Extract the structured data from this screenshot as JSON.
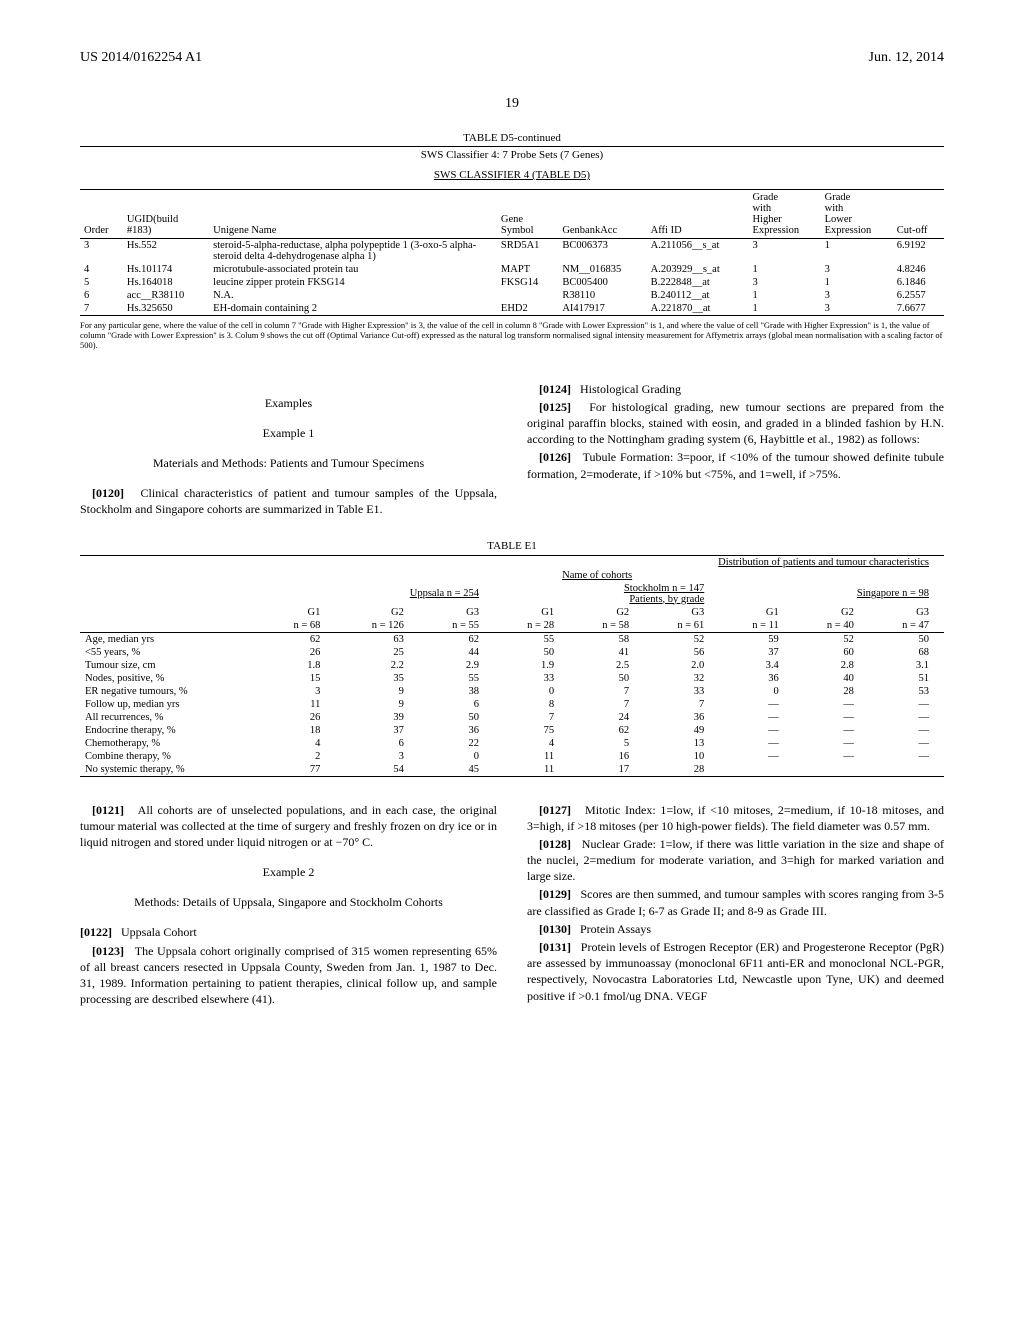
{
  "header": {
    "left": "US 2014/0162254 A1",
    "right": "Jun. 12, 2014",
    "page_num": "19"
  },
  "tableD5": {
    "title_line": "TABLE D5-continued",
    "subtitle1": "SWS Classifier 4: 7 Probe Sets (7 Genes)",
    "subtitle2": "SWS CLASSIFIER 4 (TABLE D5)",
    "columns": [
      "Order",
      "UGID(build #183)",
      "Unigene Name",
      "Gene Symbol",
      "GenbankAcc",
      "Affi ID",
      "Grade with Higher Expression",
      "Grade with Lower Expression",
      "Cut-off"
    ],
    "rows": [
      {
        "order": "3",
        "ugid": "Hs.552",
        "name": "steroid-5-alpha-reductase, alpha polypeptide 1 (3-oxo-5 alpha-steroid delta 4-dehydrogenase alpha 1)",
        "sym": "SRD5A1",
        "gb": "BC006373",
        "affi": "A.211056__s_at",
        "hi": "3",
        "lo": "1",
        "cut": "6.9192"
      },
      {
        "order": "4",
        "ugid": "Hs.101174",
        "name": "microtubule-associated protein tau",
        "sym": "MAPT",
        "gb": "NM__016835",
        "affi": "A.203929__s_at",
        "hi": "1",
        "lo": "3",
        "cut": "4.8246"
      },
      {
        "order": "5",
        "ugid": "Hs.164018",
        "name": "leucine zipper protein FKSG14",
        "sym": "FKSG14",
        "gb": "BC005400",
        "affi": "B.222848__at",
        "hi": "3",
        "lo": "1",
        "cut": "6.1846"
      },
      {
        "order": "6",
        "ugid": "acc__R38110",
        "name": "N.A.",
        "sym": "",
        "gb": "R38110",
        "affi": "B.240112__at",
        "hi": "1",
        "lo": "3",
        "cut": "6.2557"
      },
      {
        "order": "7",
        "ugid": "Hs.325650",
        "name": "EH-domain containing 2",
        "sym": "EHD2",
        "gb": "AI417917",
        "affi": "A.221870__at",
        "hi": "1",
        "lo": "3",
        "cut": "7.6677"
      }
    ],
    "footnote": "For any particular gene, where the value of the cell in column 7 \"Grade with Higher Expression\" is 3, the value of the cell in column 8 \"Grade with Lower Expression\" is 1, and where the value of cell \"Grade with Higher Expression\" is 1, the value of column \"Grade with Lower Expression\" is 3. Colum 9 shows the cut off (Optimal Variance Cut-off) expressed as the natural log transform normalised signal intensity measurement for Affymetrix arrays (global mean normalisation with a scaling factor of 500)."
  },
  "sections": {
    "examples": "Examples",
    "example1": "Example 1",
    "example1_sub": "Materials and Methods: Patients and Tumour Specimens",
    "p0120_num": "[0120]",
    "p0120": "Clinical characteristics of patient and tumour samples of the Uppsala, Stockholm and Singapore cohorts are summarized in Table E1.",
    "p0124_num": "[0124]",
    "p0124": "Histological Grading",
    "p0125_num": "[0125]",
    "p0125": "For histological grading, new tumour sections are prepared from the original paraffin blocks, stained with eosin, and graded in a blinded fashion by H.N. according to the Nottingham grading system (6, Haybittle et al., 1982) as follows:",
    "p0126_num": "[0126]",
    "p0126": "Tubule Formation: 3=poor, if <10% of the tumour showed definite tubule formation, 2=moderate, if >10% but <75%, and 1=well, if >75%."
  },
  "tableE1": {
    "title": "TABLE E1",
    "caption": "Distribution of patients and tumour characteristics",
    "name_of_cohorts": "Name of cohorts",
    "cohorts": [
      {
        "name": "Uppsala n = 254",
        "cols": [
          "G1 n = 68",
          "G2 n = 126",
          "G3 n = 55"
        ]
      },
      {
        "name": "Stockholm n = 147 Patients, by grade",
        "cols": [
          "G1 n = 28",
          "G2 n = 58",
          "G3 n = 61"
        ]
      },
      {
        "name": "Singapore n = 98",
        "cols": [
          "G1 n = 11",
          "G2 n = 40",
          "G3 n = 47"
        ]
      }
    ],
    "col_labels_top": [
      "G1",
      "G2",
      "G3",
      "G1",
      "G2",
      "G3",
      "G1",
      "G2",
      "G3"
    ],
    "col_labels_bot": [
      "n = 68",
      "n = 126",
      "n = 55",
      "n = 28",
      "n = 58",
      "n = 61",
      "n = 11",
      "n = 40",
      "n = 47"
    ],
    "rows": [
      {
        "label": "Age, median yrs",
        "v": [
          "62",
          "63",
          "62",
          "55",
          "58",
          "52",
          "59",
          "52",
          "50"
        ]
      },
      {
        "label": "<55 years, %",
        "v": [
          "26",
          "25",
          "44",
          "50",
          "41",
          "56",
          "37",
          "60",
          "68"
        ]
      },
      {
        "label": "Tumour size, cm",
        "v": [
          "1.8",
          "2.2",
          "2.9",
          "1.9",
          "2.5",
          "2.0",
          "3.4",
          "2.8",
          "3.1"
        ]
      },
      {
        "label": "Nodes, positive, %",
        "v": [
          "15",
          "35",
          "55",
          "33",
          "50",
          "32",
          "36",
          "40",
          "51"
        ]
      },
      {
        "label": "ER negative tumours, %",
        "v": [
          "3",
          "9",
          "38",
          "0",
          "7",
          "33",
          "0",
          "28",
          "53"
        ]
      },
      {
        "label": "Follow up, median yrs",
        "v": [
          "11",
          "9",
          "6",
          "8",
          "7",
          "7",
          "—",
          "—",
          "—"
        ]
      },
      {
        "label": "All recurrences, %",
        "v": [
          "26",
          "39",
          "50",
          "7",
          "24",
          "36",
          "—",
          "—",
          "—"
        ]
      },
      {
        "label": "Endocrine therapy, %",
        "v": [
          "18",
          "37",
          "36",
          "75",
          "62",
          "49",
          "—",
          "—",
          "—"
        ]
      },
      {
        "label": "Chemotherapy, %",
        "v": [
          "4",
          "6",
          "22",
          "4",
          "5",
          "13",
          "—",
          "—",
          "—"
        ]
      },
      {
        "label": "Combine therapy, %",
        "v": [
          "2",
          "3",
          "0",
          "11",
          "16",
          "10",
          "—",
          "—",
          "—"
        ]
      },
      {
        "label": "No systemic therapy, %",
        "v": [
          "77",
          "54",
          "45",
          "11",
          "17",
          "28",
          "",
          "",
          ""
        ]
      }
    ]
  },
  "lower": {
    "p0121_num": "[0121]",
    "p0121": "All cohorts are of unselected populations, and in each case, the original tumour material was collected at the time of surgery and freshly frozen on dry ice or in liquid nitrogen and stored under liquid nitrogen or at −70° C.",
    "example2": "Example 2",
    "example2_sub": "Methods: Details of Uppsala, Singapore and Stockholm Cohorts",
    "p0122_num": "[0122]",
    "p0122": "Uppsala Cohort",
    "p0123_num": "[0123]",
    "p0123": "The Uppsala cohort originally comprised of 315 women representing 65% of all breast cancers resected in Uppsala County, Sweden from Jan. 1, 1987 to Dec. 31, 1989. Information pertaining to patient therapies, clinical follow up, and sample processing are described elsewhere (41).",
    "p0127_num": "[0127]",
    "p0127": "Mitotic Index: 1=low, if <10 mitoses, 2=medium, if 10-18 mitoses, and 3=high, if >18 mitoses (per 10 high-power fields). The field diameter was 0.57 mm.",
    "p0128_num": "[0128]",
    "p0128": "Nuclear Grade: 1=low, if there was little variation in the size and shape of the nuclei, 2=medium for moderate variation, and 3=high for marked variation and large size.",
    "p0129_num": "[0129]",
    "p0129": "Scores are then summed, and tumour samples with scores ranging from 3-5 are classified as Grade I; 6-7 as Grade II; and 8-9 as Grade III.",
    "p0130_num": "[0130]",
    "p0130": "Protein Assays",
    "p0131_num": "[0131]",
    "p0131": "Protein levels of Estrogen Receptor (ER) and Progesterone Receptor (PgR) are assessed by immunoassay (monoclonal 6F11 anti-ER and monoclonal NCL-PGR, respectively, Novocastra Laboratories Ltd, Newcastle upon Tyne, UK) and deemed positive if >0.1 fmol/ug DNA. VEGF"
  }
}
